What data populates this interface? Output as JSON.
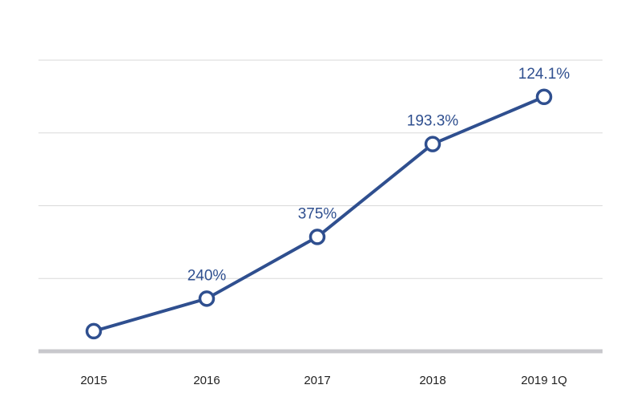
{
  "chart_data": {
    "type": "line",
    "title": "",
    "xlabel": "",
    "ylabel": "",
    "categories": [
      "2015",
      "2016",
      "2017",
      "2018",
      "2019 1Q"
    ],
    "series": [
      {
        "values": [
          0.9,
          5.6,
          14.5,
          27.9,
          34.7
        ],
        "data_labels": [
          "",
          "240%",
          "375%",
          "193.3%",
          "124.1%"
        ]
      }
    ],
    "ylim": [
      -2,
      40
    ],
    "grid": true,
    "legend": "none",
    "colors": {
      "series": "#2f4f8f",
      "label": "#2f4f8f",
      "grid": "#d9d9d9",
      "baseline": "#c8c8cc"
    }
  }
}
